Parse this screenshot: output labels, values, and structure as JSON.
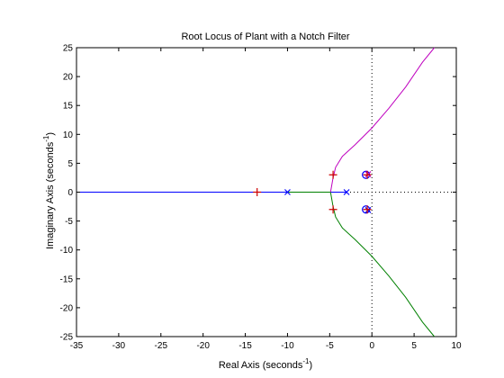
{
  "chart_data": {
    "type": "line",
    "title": "Root Locus of Plant with a Notch Filter",
    "xlabel": {
      "text": "Real Axis (seconds",
      "sup": "-1",
      "close": ")"
    },
    "ylabel": {
      "text": "Imaginary Axis (seconds",
      "sup": "-1",
      "close": ")"
    },
    "xlim": [
      -35,
      10
    ],
    "ylim": [
      -25,
      25
    ],
    "xticks": [
      -35,
      -30,
      -25,
      -20,
      -15,
      -10,
      -5,
      0,
      5,
      10
    ],
    "yticks": [
      -25,
      -20,
      -15,
      -10,
      -5,
      0,
      5,
      10,
      15,
      20,
      25
    ],
    "grid": false,
    "legend": "none",
    "reference_lines": {
      "x": 0,
      "y": 0,
      "style": "dotted"
    },
    "series": [
      {
        "color": "#0000ff",
        "points": [
          [
            -35,
            0
          ],
          [
            -4.9,
            0
          ]
        ]
      },
      {
        "color": "#0000ff",
        "points": [
          [
            -3,
            0
          ],
          [
            -4.9,
            0
          ]
        ]
      },
      {
        "color": "#008000",
        "points": [
          [
            -10,
            0
          ],
          [
            -4.9,
            0
          ]
        ]
      },
      {
        "color": "#bf00bf",
        "points": [
          [
            -4.9,
            0
          ],
          [
            -4.6,
            2.5
          ],
          [
            -4.3,
            4.3
          ],
          [
            -3.5,
            6.2
          ],
          [
            -2,
            8.2
          ],
          [
            0,
            11.1
          ],
          [
            2,
            14.5
          ],
          [
            4,
            18.2
          ],
          [
            6,
            22.5
          ],
          [
            7.4,
            25
          ]
        ]
      },
      {
        "color": "#008000",
        "points": [
          [
            -4.9,
            0
          ],
          [
            -4.6,
            -2.5
          ],
          [
            -4.3,
            -4.3
          ],
          [
            -3.5,
            -6.2
          ],
          [
            -2,
            -8.2
          ],
          [
            0,
            -11.1
          ],
          [
            2,
            -14.5
          ],
          [
            4,
            -18.2
          ],
          [
            6,
            -22.5
          ],
          [
            7.4,
            -25
          ]
        ]
      },
      {
        "color": "#bf00bf",
        "points": [
          [
            -0.45,
            3.1
          ],
          [
            -0.7,
            3.0
          ]
        ]
      },
      {
        "color": "#008000",
        "points": [
          [
            -0.45,
            -3.1
          ],
          [
            -0.7,
            -3.0
          ]
        ]
      }
    ],
    "poles": [
      {
        "x": -10,
        "y": 0,
        "color": "#0000ff"
      },
      {
        "x": -3,
        "y": 0,
        "color": "#0000ff"
      },
      {
        "x": -0.45,
        "y": 3.1,
        "color": "#bf00bf"
      },
      {
        "x": -0.45,
        "y": -3.1,
        "color": "#0000ff"
      }
    ],
    "zeros": [
      {
        "x": -0.7,
        "y": 3.0,
        "color": "#0000ff"
      },
      {
        "x": -0.7,
        "y": -3.0,
        "color": "#0000ff"
      }
    ],
    "closed_loop_poles": [
      {
        "x": -13.6,
        "y": 0,
        "color": "#cc0000"
      },
      {
        "x": -4.6,
        "y": 3.0,
        "color": "#cc0000"
      },
      {
        "x": -4.6,
        "y": -3.0,
        "color": "#cc0000"
      },
      {
        "x": -0.55,
        "y": 3.0,
        "color": "#cc0000"
      },
      {
        "x": -0.55,
        "y": -3.0,
        "color": "#cc0000"
      }
    ]
  }
}
